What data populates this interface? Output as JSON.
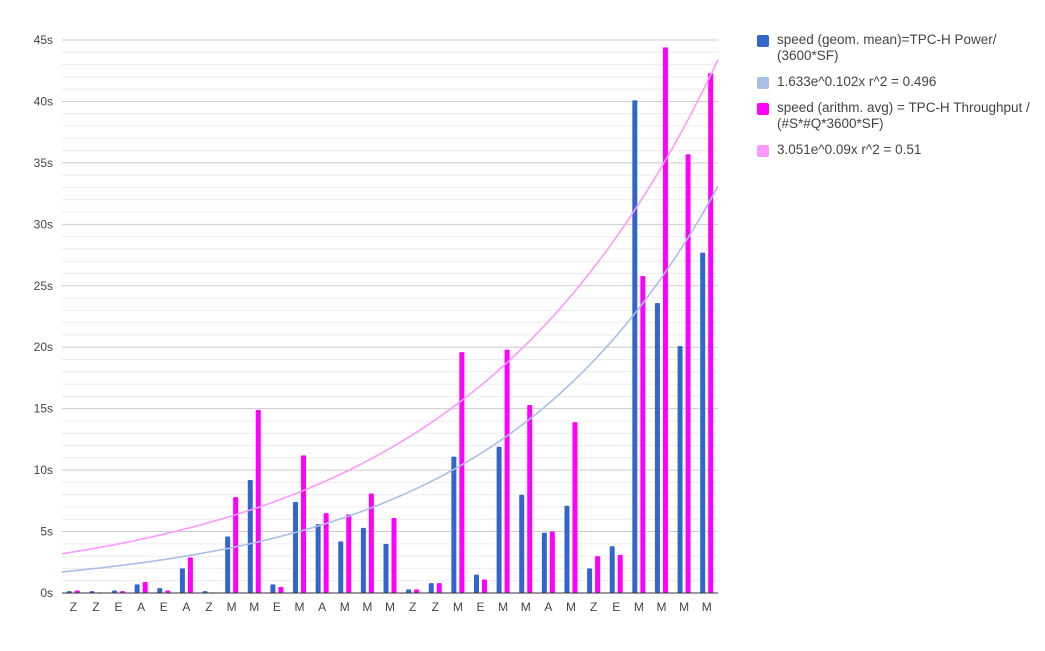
{
  "chart_data": {
    "type": "bar",
    "categories": [
      "Z",
      "Z",
      "E",
      "A",
      "E",
      "A",
      "Z",
      "M",
      "M",
      "E",
      "M",
      "A",
      "M",
      "M",
      "M",
      "Z",
      "Z",
      "M",
      "E",
      "M",
      "M",
      "A",
      "M",
      "Z",
      "E",
      "M",
      "M",
      "M",
      "M"
    ],
    "series": [
      {
        "name": "speed (geom. mean)=TPC-H Power/ (3600*SF)",
        "color": "#3366cc",
        "values": [
          0.15,
          0.15,
          0.2,
          0.7,
          0.4,
          2.0,
          0.15,
          4.6,
          9.2,
          0.7,
          7.4,
          5.6,
          4.2,
          5.3,
          4.0,
          0.3,
          0.8,
          11.1,
          1.5,
          11.9,
          8.0,
          4.9,
          7.1,
          2.0,
          3.8,
          40.1,
          23.6,
          20.1,
          27.7
        ]
      },
      {
        "name": "speed (arithm. avg) = TPC-H Throughput / (#S*#Q*3600*SF)",
        "color": "#ff00ff",
        "values": [
          0.2,
          0.05,
          0.15,
          0.9,
          0.2,
          2.9,
          0.05,
          7.8,
          14.9,
          0.5,
          11.2,
          6.5,
          6.4,
          8.1,
          6.1,
          0.3,
          0.8,
          19.6,
          1.1,
          19.8,
          15.3,
          5.0,
          13.9,
          3.0,
          3.1,
          25.8,
          44.4,
          35.7,
          42.3
        ]
      }
    ],
    "trendlines": [
      {
        "name": "1.633e^0.102x r^2 = 0.496",
        "a": 1.633,
        "b": 0.102,
        "color": "#a8bfe8"
      },
      {
        "name": "3.051e^0.09x r^2 = 0.51",
        "a": 3.051,
        "b": 0.09,
        "color": "#ff99ff"
      }
    ],
    "yticks": [
      "0s",
      "5s",
      "10s",
      "15s",
      "20s",
      "25s",
      "30s",
      "35s",
      "40s",
      "45s"
    ],
    "ylim": [
      0,
      45
    ],
    "grid": true,
    "legend_position": "right",
    "xlabel": "",
    "ylabel": ""
  },
  "legend": [
    {
      "label": "speed (geom. mean)=TPC-H Power/ (3600*SF)",
      "color": "#3366cc"
    },
    {
      "label": "1.633e^0.102x r^2 = 0.496",
      "color": "#a8bfe8"
    },
    {
      "label": "speed (arithm. avg) = TPC-H Throughput / (#S*#Q*3600*SF)",
      "color": "#ff00ff"
    },
    {
      "label": "3.051e^0.09x r^2 = 0.51",
      "color": "#ff99ff"
    }
  ]
}
